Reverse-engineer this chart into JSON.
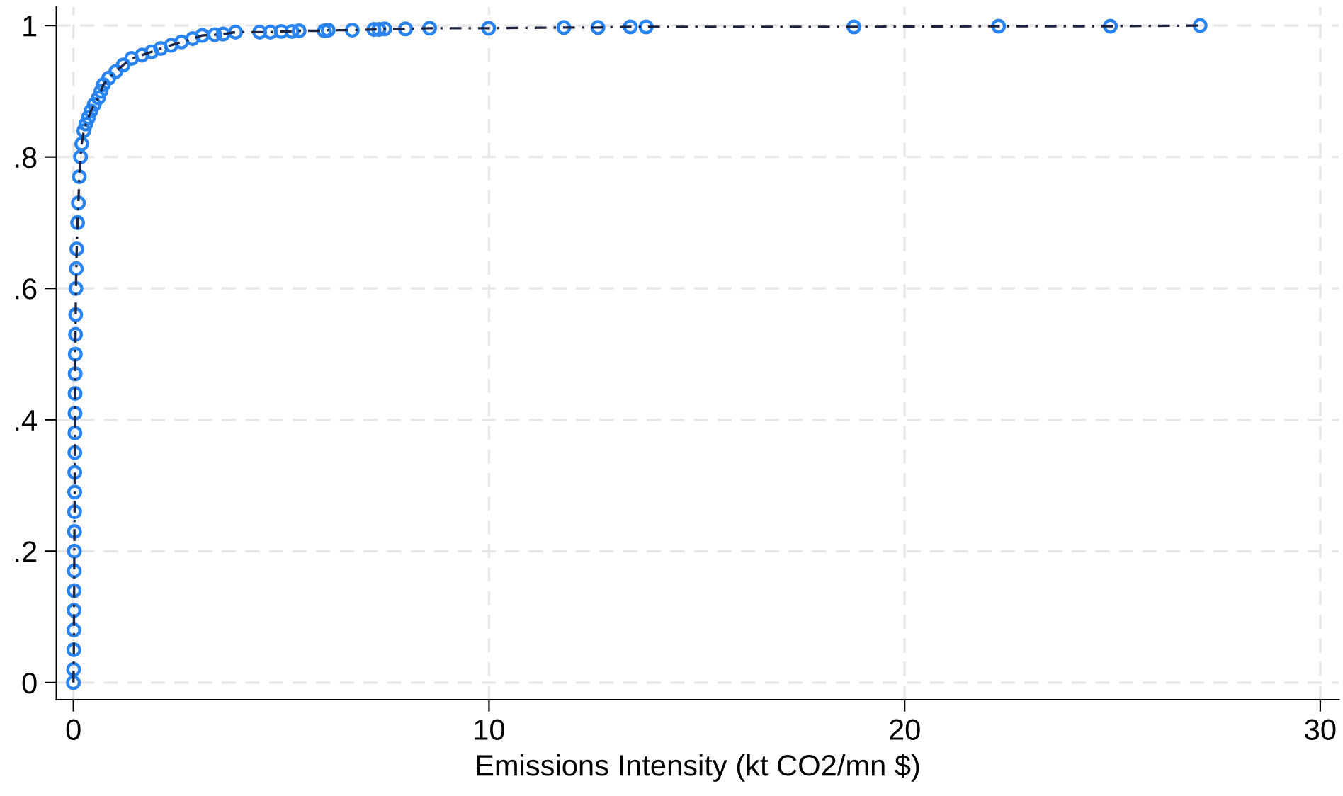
{
  "chart_data": {
    "type": "scatter",
    "xlabel": "Emissions Intensity (kt CO2/mn $)",
    "xlim": [
      -0.41,
      30.45
    ],
    "ylim": [
      -0.026,
      1.028
    ],
    "xticks": [
      0,
      10,
      20,
      30
    ],
    "yticks": [
      0,
      {
        "value": 0.2,
        "label": ".2"
      },
      {
        "value": 0.4,
        "label": ".4"
      },
      {
        "value": 0.6,
        "label": ".6"
      },
      {
        "value": 0.8,
        "label": ".8"
      },
      1
    ],
    "grid": true,
    "x": [
      0,
      0.005,
      0.01,
      0.012,
      0.015,
      0.018,
      0.02,
      0.022,
      0.025,
      0.028,
      0.03,
      0.032,
      0.034,
      0.036,
      0.038,
      0.04,
      0.042,
      0.045,
      0.05,
      0.055,
      0.06,
      0.07,
      0.08,
      0.1,
      0.12,
      0.14,
      0.17,
      0.2,
      0.25,
      0.3,
      0.36,
      0.42,
      0.5,
      0.6,
      0.66,
      0.72,
      0.85,
      1.02,
      1.2,
      1.4,
      1.65,
      1.88,
      2.1,
      2.35,
      2.6,
      2.87,
      3.1,
      3.4,
      3.6,
      3.9,
      4.48,
      4.74,
      5.0,
      5.26,
      5.43,
      6.04,
      6.13,
      6.71,
      7.23,
      7.35,
      7.49,
      7.99,
      8.57,
      9.99,
      11.8,
      12.62,
      13.4,
      13.78,
      18.78,
      22.26,
      24.95,
      27.11
    ],
    "series": [
      {
        "marker": "circle",
        "color": "#2a84f0",
        "values": [
          0,
          0.02,
          0.05,
          0.08,
          0.11,
          0.14,
          0.17,
          0.2,
          0.23,
          0.26,
          0.29,
          0.32,
          0.35,
          0.38,
          0.41,
          0.44,
          0.47,
          0.5,
          0.53,
          0.56,
          0.6,
          0.63,
          0.66,
          0.7,
          0.73,
          0.77,
          0.8,
          0.82,
          0.84,
          0.85,
          0.86,
          0.87,
          0.88,
          0.89,
          0.9,
          0.91,
          0.92,
          0.93,
          0.94,
          0.95,
          0.955,
          0.96,
          0.965,
          0.97,
          0.975,
          0.98,
          0.985,
          0.986,
          0.987,
          0.99,
          0.99,
          0.99,
          0.991,
          0.991,
          0.992,
          0.992,
          0.993,
          0.993,
          0.994,
          0.994,
          0.995,
          0.995,
          0.996,
          0.996,
          0.997,
          0.997,
          0.998,
          0.998,
          0.998,
          0.999,
          0.999,
          1.0
        ]
      },
      {
        "type": "line",
        "line_style": "dashed",
        "marker": "none",
        "color": "#1c2340",
        "values": [
          0,
          0.02,
          0.05,
          0.08,
          0.11,
          0.14,
          0.17,
          0.2,
          0.23,
          0.26,
          0.29,
          0.32,
          0.35,
          0.38,
          0.41,
          0.44,
          0.47,
          0.5,
          0.53,
          0.56,
          0.6,
          0.63,
          0.66,
          0.7,
          0.73,
          0.77,
          0.8,
          0.82,
          0.84,
          0.85,
          0.86,
          0.87,
          0.88,
          0.89,
          0.9,
          0.91,
          0.92,
          0.93,
          0.94,
          0.95,
          0.955,
          0.96,
          0.965,
          0.97,
          0.975,
          0.98,
          0.985,
          0.986,
          0.987,
          0.99,
          0.99,
          0.99,
          0.991,
          0.991,
          0.992,
          0.992,
          0.993,
          0.993,
          0.994,
          0.994,
          0.995,
          0.995,
          0.996,
          0.996,
          0.997,
          0.997,
          0.998,
          0.998,
          0.998,
          0.999,
          0.999,
          1.0
        ]
      }
    ]
  }
}
